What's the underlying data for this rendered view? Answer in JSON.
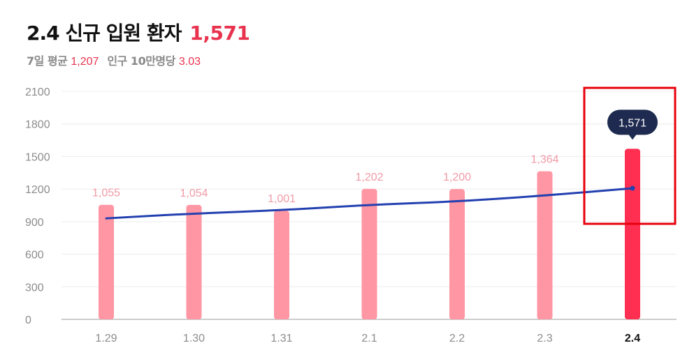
{
  "header": {
    "title": "2.4 신규 입원 환자",
    "title_value": "1,571",
    "avg_label": "7일 평균",
    "avg_value": "1,207",
    "per_label": "인구 10만명당",
    "per_value": "3.03"
  },
  "colors": {
    "bar": "#ff96a3",
    "bar_highlight": "#ff2f52",
    "line": "#2340b0",
    "tooltip_bg": "#1e2a4f",
    "accent": "#e8334f",
    "highlight_box": "#e8000d"
  },
  "chart_data": {
    "type": "bar",
    "categories": [
      "1.29",
      "1.30",
      "1.31",
      "2.1",
      "2.2",
      "2.3",
      "2.4"
    ],
    "values": [
      1055,
      1054,
      1001,
      1202,
      1200,
      1364,
      1571
    ],
    "value_labels": [
      "1,055",
      "1,054",
      "1,001",
      "1,202",
      "1,200",
      "1,364",
      "1,571"
    ],
    "highlight_index": 6,
    "tooltip": "1,571",
    "avg_line": [
      930,
      975,
      1005,
      1055,
      1085,
      1140,
      1207
    ],
    "y_ticks": [
      0,
      300,
      600,
      900,
      1200,
      1500,
      1800,
      2100
    ],
    "ylim": [
      0,
      2100
    ],
    "grid": true
  }
}
